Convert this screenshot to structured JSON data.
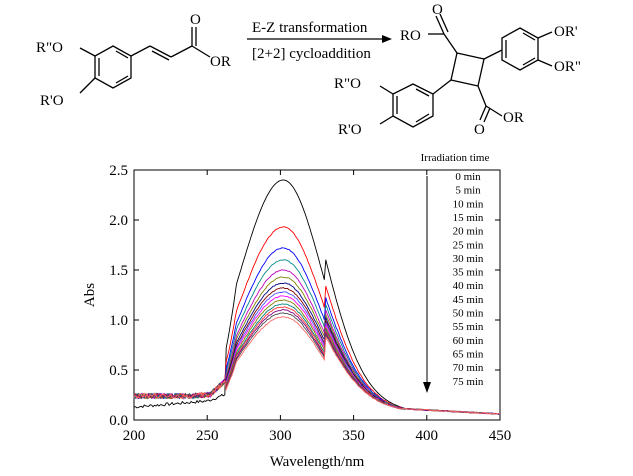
{
  "scheme": {
    "arrow_top_label": "E-Z transformation",
    "arrow_bottom_label": "[2+2] cycloaddition",
    "reactant": {
      "o_carbonyl": "O",
      "ester_or": "OR",
      "sub_meta": "R\"O",
      "sub_para": "R'O"
    },
    "product": {
      "top_o": "O",
      "top_ro": "RO",
      "right_or_prime": "OR'",
      "right_or_dprime": "OR\"",
      "left_sub_meta": "R\"O",
      "left_sub_para": "R'O",
      "bottom_o": "O",
      "bottom_or": "OR"
    }
  },
  "chart_data": {
    "type": "line",
    "xlabel": "Wavelength/nm",
    "ylabel": "Abs",
    "xlim": [
      200,
      450
    ],
    "ylim": [
      0.0,
      2.5
    ],
    "x_ticks": [
      "200",
      "250",
      "300",
      "350",
      "400",
      "450"
    ],
    "y_ticks": [
      "0.0",
      "0.5",
      "1.0",
      "1.5",
      "2.0",
      "2.5"
    ],
    "legend_title": "Irradiation time",
    "legend_position": "top-right",
    "peak_wavelength": 302,
    "series": [
      {
        "name": "0 min",
        "color": "#000000",
        "peak": 2.4
      },
      {
        "name": "5 min",
        "color": "#ff0000",
        "peak": 1.93
      },
      {
        "name": "10 min",
        "color": "#0000ff",
        "peak": 1.72
      },
      {
        "name": "15 min",
        "color": "#008a8a",
        "peak": 1.6
      },
      {
        "name": "20 min",
        "color": "#c000c0",
        "peak": 1.5
      },
      {
        "name": "25 min",
        "color": "#808000",
        "peak": 1.43
      },
      {
        "name": "30 min",
        "color": "#000080",
        "peak": 1.37
      },
      {
        "name": "35 min",
        "color": "#800000",
        "peak": 1.32
      },
      {
        "name": "40 min",
        "color": "#5050ff",
        "peak": 1.28
      },
      {
        "name": "45 min",
        "color": "#ff00ff",
        "peak": 1.24
      },
      {
        "name": "50 min",
        "color": "#7f7f00",
        "peak": 1.2
      },
      {
        "name": "55 min",
        "color": "#008080",
        "peak": 1.16
      },
      {
        "name": "60 min",
        "color": "#ff3333",
        "peak": 1.13
      },
      {
        "name": "65 min",
        "color": "#7f0080",
        "peak": 1.1
      },
      {
        "name": "70 min",
        "color": "#4d4d4d",
        "peak": 1.07
      },
      {
        "name": "75 min",
        "color": "#ff6666",
        "peak": 1.03
      }
    ]
  }
}
